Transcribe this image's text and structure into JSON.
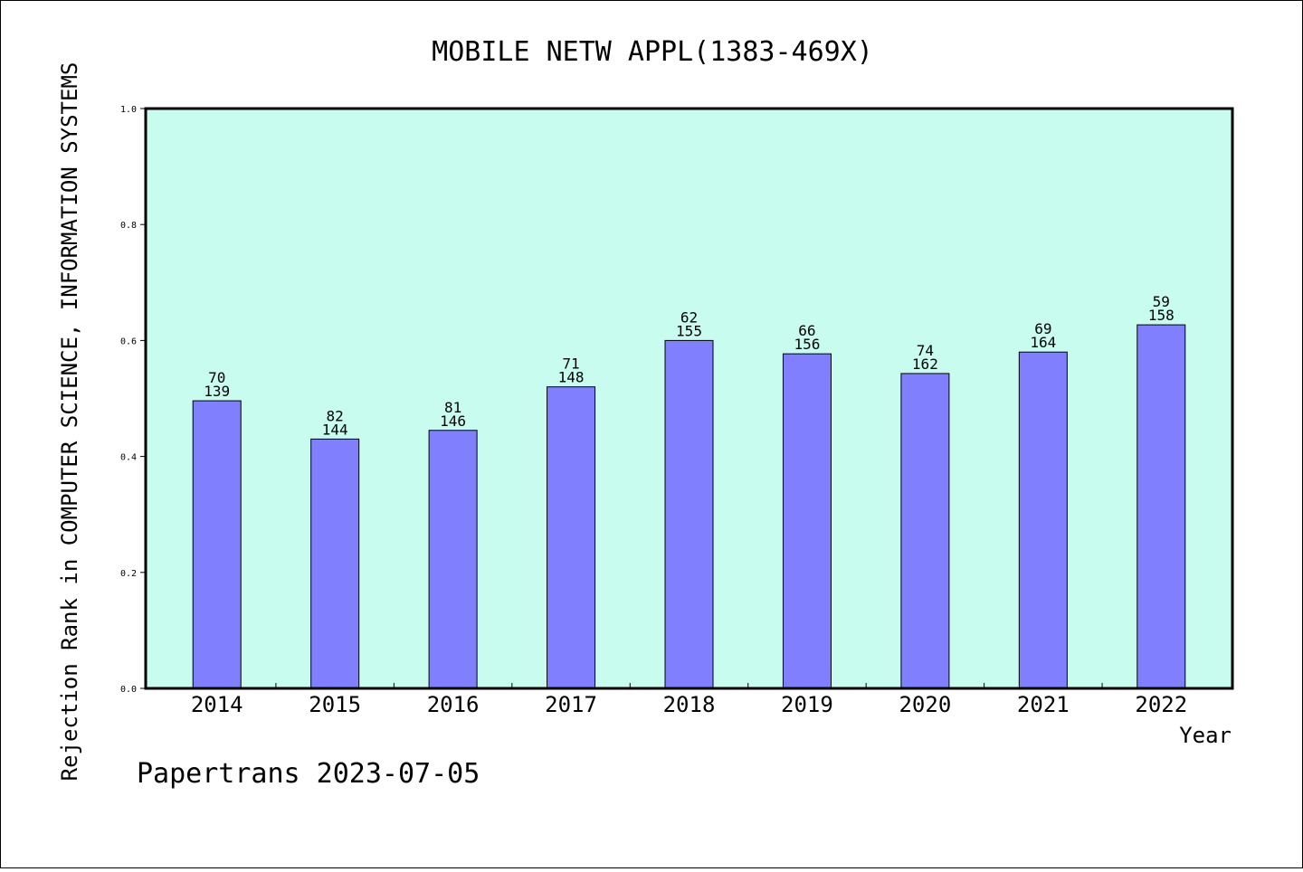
{
  "chart_data": {
    "type": "bar",
    "title": "MOBILE NETW APPL(1383-469X)",
    "xlabel": "Year",
    "ylabel": "Rejection Rank in COMPUTER SCIENCE, INFORMATION SYSTEMS",
    "ylim": [
      0,
      1.0
    ],
    "yticks": [
      "0.0",
      "0.2",
      "0.4",
      "0.6",
      "0.8",
      "1.0"
    ],
    "categories": [
      "2014",
      "2015",
      "2016",
      "2017",
      "2018",
      "2019",
      "2020",
      "2021",
      "2022"
    ],
    "values": [
      0.496,
      0.43,
      0.445,
      0.52,
      0.6,
      0.577,
      0.543,
      0.58,
      0.627
    ],
    "rank_labels": [
      "70",
      "82",
      "81",
      "71",
      "62",
      "66",
      "74",
      "69",
      "59"
    ],
    "total_labels": [
      "139",
      "144",
      "146",
      "148",
      "155",
      "156",
      "162",
      "164",
      "158"
    ],
    "grid": false,
    "colors": {
      "plot_background": "#c8fcef",
      "bar_fill": "#8080ff",
      "bar_stroke": "#000000"
    }
  },
  "footer": {
    "credit": "Papertrans 2023-07-05"
  }
}
